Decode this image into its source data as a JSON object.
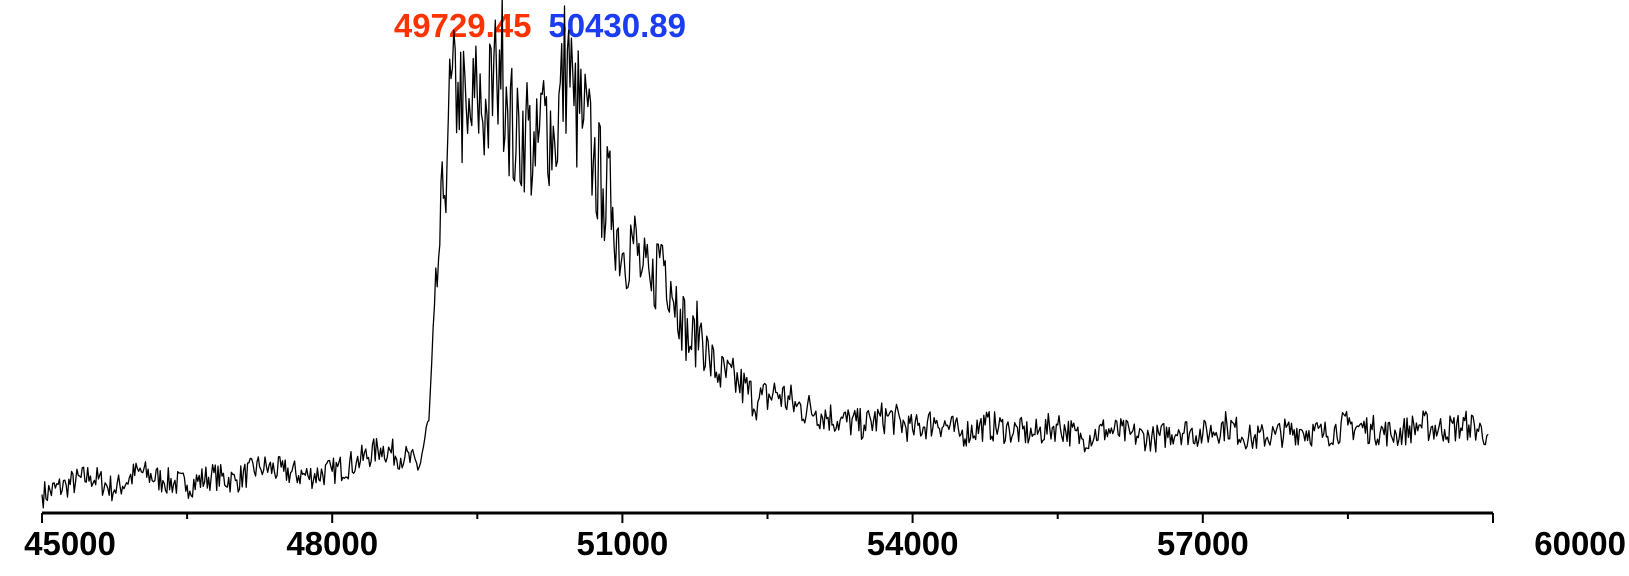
{
  "chart_data": {
    "type": "line",
    "title": "",
    "xlabel": "",
    "ylabel": "",
    "xlim": [
      45000,
      60000
    ],
    "ylim": [
      0,
      100
    ],
    "x_ticks": [
      45000,
      48000,
      51000,
      54000,
      57000,
      60000
    ],
    "x_tick_labels": [
      "45000",
      "48000",
      "51000",
      "54000",
      "57000",
      "60000"
    ],
    "y_axis_visible": false,
    "grid": false,
    "line_color": "#000000",
    "annotations": [
      {
        "text": "49729.45",
        "x": 49729.45,
        "color": "#ff3300"
      },
      {
        "text": "50430.89",
        "x": 50430.89,
        "color": "#1a3cf5"
      }
    ],
    "series": [
      {
        "x": [
          45000,
          45250,
          45500,
          45750,
          46000,
          46250,
          46500,
          46750,
          47000,
          47250,
          47500,
          47750,
          48000,
          48250,
          48500,
          48750,
          48900,
          49000,
          49100,
          49150,
          49200,
          49300,
          49400,
          49500,
          49600,
          49700,
          49729,
          49800,
          49900,
          50000,
          50100,
          50200,
          50300,
          50431,
          50500,
          50600,
          50700,
          50800,
          50900,
          51000,
          51100,
          51200,
          51300,
          51400,
          51500,
          51600,
          51700,
          51800,
          51900,
          52000,
          52200,
          52400,
          52600,
          52800,
          53000,
          53250,
          53500,
          53750,
          54000,
          54250,
          54500,
          54750,
          55000,
          55250,
          55500,
          55750,
          56000,
          56250,
          56500,
          56750,
          57000,
          57250,
          57500,
          57750,
          58000,
          58250,
          58500,
          58750,
          59000,
          59250,
          59500,
          59750,
          59950
        ],
        "y": [
          4,
          6,
          8,
          5,
          9,
          7,
          6,
          8,
          7,
          10,
          9,
          8,
          9,
          11,
          14,
          12,
          10,
          20,
          55,
          68,
          85,
          93,
          82,
          90,
          86,
          95,
          100,
          92,
          78,
          85,
          75,
          88,
          80,
          100,
          88,
          85,
          76,
          70,
          66,
          56,
          60,
          52,
          48,
          58,
          50,
          44,
          36,
          40,
          33,
          30,
          28,
          24,
          26,
          23,
          22,
          20,
          19,
          21,
          18,
          20,
          17,
          19,
          18,
          17,
          19,
          16,
          18,
          17,
          16,
          18,
          17,
          19,
          16,
          17,
          18,
          17,
          19,
          18,
          17,
          19,
          18,
          19,
          17
        ]
      }
    ]
  }
}
